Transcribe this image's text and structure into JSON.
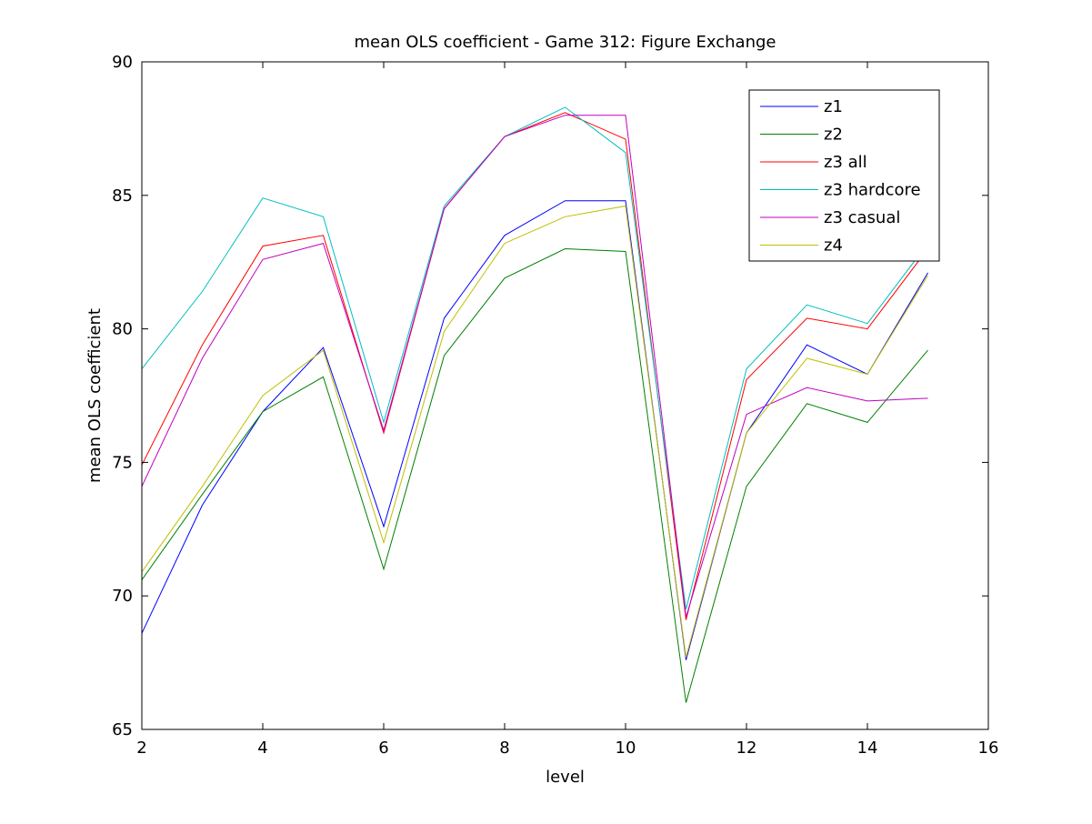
{
  "chart_data": {
    "type": "line",
    "title": "mean OLS coefficient - Game 312: Figure Exchange",
    "xlabel": "level",
    "ylabel": "mean OLS coefficient",
    "xlim": [
      2,
      16
    ],
    "ylim": [
      65,
      90
    ],
    "xticks": [
      2,
      4,
      6,
      8,
      10,
      12,
      14,
      16
    ],
    "yticks": [
      65,
      70,
      75,
      80,
      85,
      90
    ],
    "grid": false,
    "legend_position": "top-right",
    "x": [
      2,
      3,
      4,
      5,
      6,
      7,
      8,
      9,
      10,
      11,
      12,
      13,
      14,
      15
    ],
    "series": [
      {
        "name": "z1",
        "color": "#0000ff",
        "values": [
          68.6,
          73.4,
          76.9,
          79.3,
          72.6,
          80.4,
          83.5,
          84.8,
          84.8,
          67.6,
          76.1,
          79.4,
          78.3,
          82.1
        ]
      },
      {
        "name": "z2",
        "color": "#008000",
        "values": [
          70.6,
          73.8,
          76.9,
          78.2,
          71.0,
          79.0,
          81.9,
          83.0,
          82.9,
          66.0,
          74.1,
          77.2,
          76.5,
          79.2
        ]
      },
      {
        "name": "z3 all",
        "color": "#ff0000",
        "values": [
          74.9,
          79.4,
          83.1,
          83.5,
          76.1,
          84.5,
          87.2,
          88.1,
          87.1,
          69.1,
          78.1,
          80.4,
          80.0,
          83.0
        ]
      },
      {
        "name": "z3 hardcore",
        "color": "#00bfbf",
        "values": [
          78.5,
          81.4,
          84.9,
          84.2,
          76.5,
          84.6,
          87.2,
          88.3,
          86.6,
          69.5,
          78.5,
          80.9,
          80.2,
          83.2
        ]
      },
      {
        "name": "z3 casual",
        "color": "#bf00bf",
        "values": [
          74.1,
          78.9,
          82.6,
          83.2,
          76.2,
          84.5,
          87.2,
          88.0,
          88.0,
          69.2,
          76.8,
          77.8,
          77.3,
          77.4
        ]
      },
      {
        "name": "z4",
        "color": "#bfbf00",
        "values": [
          70.9,
          74.1,
          77.5,
          79.2,
          72.0,
          79.9,
          83.2,
          84.2,
          84.6,
          67.7,
          76.1,
          78.9,
          78.3,
          82.0
        ]
      }
    ]
  }
}
